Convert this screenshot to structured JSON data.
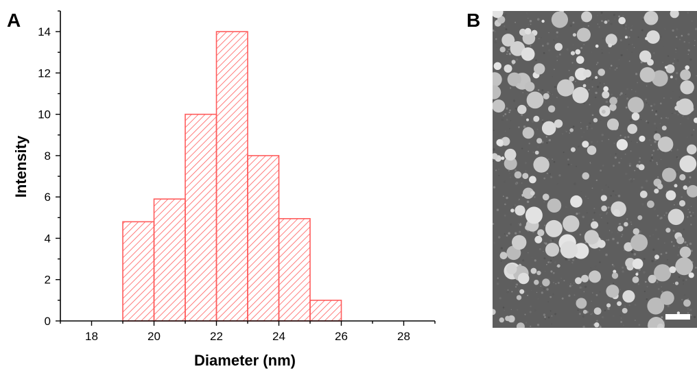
{
  "panel_labels": {
    "a": "A",
    "b": "B"
  },
  "chart_data": {
    "type": "bar",
    "subtype": "histogram",
    "title": "",
    "xlabel": "Diameter (nm)",
    "ylabel": "Intensity",
    "xlim": [
      17,
      29
    ],
    "ylim": [
      0,
      15
    ],
    "xticks": [
      18,
      20,
      22,
      24,
      26,
      28
    ],
    "yticks": [
      0,
      2,
      4,
      6,
      8,
      10,
      12,
      14
    ],
    "bins": [
      {
        "from": 19,
        "to": 20,
        "value": 4.8
      },
      {
        "from": 20,
        "to": 21,
        "value": 5.9
      },
      {
        "from": 21,
        "to": 22,
        "value": 10
      },
      {
        "from": 22,
        "to": 23,
        "value": 14
      },
      {
        "from": 23,
        "to": 24,
        "value": 8
      },
      {
        "from": 24,
        "to": 25,
        "value": 4.95
      },
      {
        "from": 25,
        "to": 26,
        "value": 1
      }
    ],
    "bar_color": "#ff5c5c",
    "bar_fill": "diagonal-hatch",
    "grid": false,
    "legend": "none"
  },
  "micrograph": {
    "description_visible": false,
    "background_color": "#5e5e5e",
    "particle_color": "#d8d8d8",
    "scale_bar_color": "#ffffff"
  }
}
